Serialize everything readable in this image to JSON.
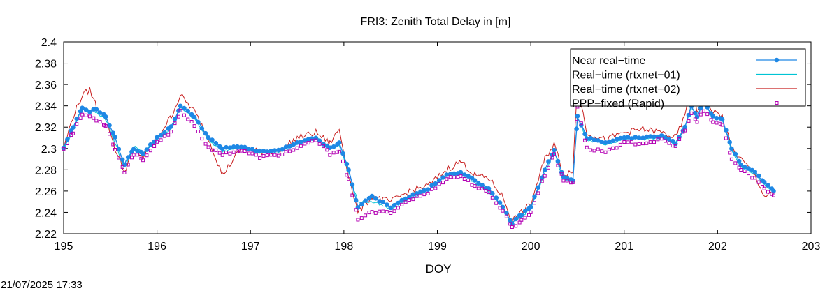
{
  "chart_data": {
    "type": "line",
    "title": "FRI3: Zenith Total Delay in [m]",
    "xlabel": "DOY",
    "ylabel": "",
    "xlim": [
      195,
      203
    ],
    "ylim": [
      2.22,
      2.4
    ],
    "xticks": [
      195,
      196,
      197,
      198,
      199,
      200,
      201,
      202,
      203
    ],
    "yticks": [
      2.22,
      2.24,
      2.26,
      2.28,
      2.3,
      2.32,
      2.34,
      2.36,
      2.38,
      2.4
    ],
    "grid": false,
    "legend_position": "top-right",
    "anchors_x": [
      195.0,
      195.1,
      195.2,
      195.28,
      195.35,
      195.45,
      195.55,
      195.65,
      195.75,
      195.85,
      196.0,
      196.15,
      196.25,
      196.4,
      196.55,
      196.7,
      196.9,
      197.1,
      197.3,
      197.5,
      197.7,
      197.85,
      197.95,
      198.05,
      198.15,
      198.3,
      198.5,
      198.7,
      198.9,
      199.1,
      199.25,
      199.4,
      199.55,
      199.7,
      199.8,
      199.9,
      200.0,
      200.15,
      200.25,
      200.35,
      200.45,
      200.5,
      200.6,
      200.8,
      201.0,
      201.2,
      201.4,
      201.55,
      201.65,
      201.72,
      201.78,
      201.85,
      201.95,
      202.05,
      202.15,
      202.25,
      202.4,
      202.5,
      202.6
    ],
    "series": [
      {
        "name": "Near real−time",
        "color": "#1e88e5",
        "style": "line-points",
        "y": [
          2.3,
          2.32,
          2.338,
          2.335,
          2.337,
          2.33,
          2.31,
          2.285,
          2.3,
          2.295,
          2.31,
          2.32,
          2.34,
          2.33,
          2.31,
          2.3,
          2.302,
          2.297,
          2.298,
          2.305,
          2.31,
          2.3,
          2.305,
          2.28,
          2.245,
          2.255,
          2.245,
          2.255,
          2.262,
          2.275,
          2.278,
          2.27,
          2.262,
          2.245,
          2.23,
          2.238,
          2.245,
          2.28,
          2.298,
          2.273,
          2.27,
          2.33,
          2.31,
          2.305,
          2.31,
          2.31,
          2.312,
          2.305,
          2.32,
          2.34,
          2.33,
          2.345,
          2.33,
          2.328,
          2.3,
          2.285,
          2.278,
          2.268,
          2.26
        ]
      },
      {
        "name": "Real−time (rtxnet−01)",
        "color": "#00c4d4",
        "style": "line",
        "y": [
          2.298,
          2.318,
          2.338,
          2.336,
          2.334,
          2.328,
          2.305,
          2.282,
          2.302,
          2.296,
          2.31,
          2.318,
          2.338,
          2.328,
          2.308,
          2.298,
          2.3,
          2.296,
          2.297,
          2.304,
          2.31,
          2.3,
          2.303,
          2.278,
          2.25,
          2.25,
          2.243,
          2.253,
          2.26,
          2.274,
          2.277,
          2.268,
          2.26,
          2.245,
          2.23,
          2.236,
          2.244,
          2.278,
          2.296,
          2.272,
          2.27,
          2.33,
          2.308,
          2.304,
          2.309,
          2.309,
          2.31,
          2.305,
          2.32,
          2.338,
          2.33,
          2.343,
          2.33,
          2.326,
          2.298,
          2.283,
          2.276,
          2.266,
          2.258
        ]
      },
      {
        "name": "Real−time (rtxnet−02)",
        "color": "#c81e1e",
        "style": "line",
        "y": [
          2.3,
          2.33,
          2.35,
          2.355,
          2.34,
          2.33,
          2.3,
          2.278,
          2.3,
          2.292,
          2.31,
          2.33,
          2.35,
          2.335,
          2.31,
          2.275,
          2.3,
          2.297,
          2.297,
          2.31,
          2.315,
          2.305,
          2.318,
          2.275,
          2.24,
          2.255,
          2.25,
          2.26,
          2.265,
          2.28,
          2.288,
          2.275,
          2.272,
          2.255,
          2.232,
          2.24,
          2.248,
          2.29,
          2.305,
          2.275,
          2.28,
          2.36,
          2.315,
          2.308,
          2.315,
          2.318,
          2.315,
          2.31,
          2.33,
          2.365,
          2.335,
          2.345,
          2.335,
          2.33,
          2.3,
          2.29,
          2.275,
          2.255,
          2.258
        ]
      },
      {
        "name": "PPP−fixed (Rapid)",
        "color": "#b300b3",
        "style": "points",
        "y": [
          2.3,
          2.315,
          2.332,
          2.33,
          2.327,
          2.322,
          2.3,
          2.278,
          2.295,
          2.29,
          2.305,
          2.315,
          2.335,
          2.322,
          2.3,
          2.295,
          2.298,
          2.292,
          2.294,
          2.3,
          2.308,
          2.295,
          2.298,
          2.27,
          2.234,
          2.24,
          2.24,
          2.252,
          2.258,
          2.272,
          2.274,
          2.265,
          2.258,
          2.242,
          2.226,
          2.232,
          2.24,
          2.275,
          2.295,
          2.27,
          2.268,
          2.34,
          2.3,
          2.297,
          2.305,
          2.305,
          2.308,
          2.302,
          2.318,
          2.332,
          2.325,
          2.335,
          2.325,
          2.322,
          2.29,
          2.28,
          2.272,
          2.262,
          2.256
        ]
      }
    ]
  },
  "timestamp": "21/07/2025 17:33"
}
